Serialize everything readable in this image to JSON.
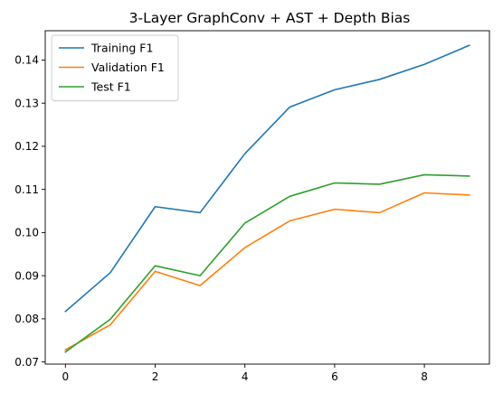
{
  "chart_data": {
    "type": "line",
    "title": "3-Layer GraphConv + AST + Depth Bias",
    "xlabel": "",
    "ylabel": "",
    "x": [
      0,
      1,
      2,
      3,
      4,
      5,
      6,
      7,
      8,
      9
    ],
    "xlim": [
      -0.45,
      9.45
    ],
    "ylim": [
      0.0695,
      0.1468
    ],
    "xticks": [
      0,
      2,
      4,
      6,
      8
    ],
    "yticks": [
      0.07,
      0.08,
      0.09,
      0.1,
      0.11,
      0.12,
      0.13,
      0.14
    ],
    "ytick_labels": [
      "0.07",
      "0.08",
      "0.09",
      "0.10",
      "0.11",
      "0.12",
      "0.13",
      "0.14"
    ],
    "grid": false,
    "legend_position": "top-left",
    "series": [
      {
        "name": "Training F1",
        "color": "#1f77b4",
        "values": [
          0.0817,
          0.0907,
          0.106,
          0.1046,
          0.1183,
          0.1291,
          0.1331,
          0.1355,
          0.139,
          0.1434
        ]
      },
      {
        "name": "Validation F1",
        "color": "#ff7f0e",
        "values": [
          0.0728,
          0.0786,
          0.091,
          0.0877,
          0.0965,
          0.1027,
          0.1054,
          0.1046,
          0.1092,
          0.1087
        ]
      },
      {
        "name": "Test F1",
        "color": "#2ca02c",
        "values": [
          0.0723,
          0.0799,
          0.0923,
          0.09,
          0.1022,
          0.1084,
          0.1115,
          0.1112,
          0.1134,
          0.1131
        ]
      }
    ]
  }
}
